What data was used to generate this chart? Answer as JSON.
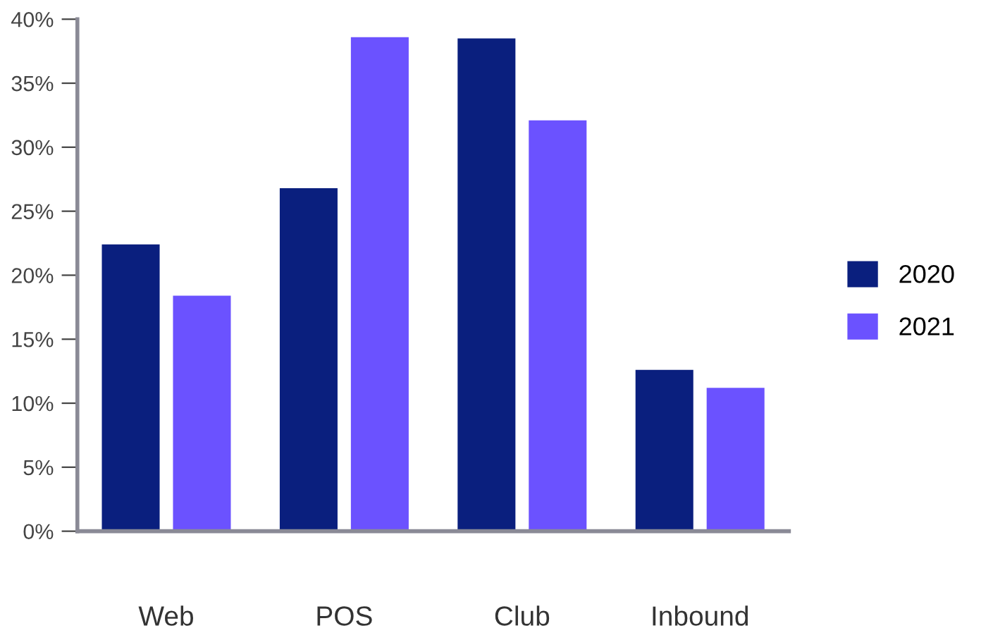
{
  "chart_data": {
    "type": "bar",
    "categories": [
      "Web",
      "POS",
      "Club",
      "Inbound"
    ],
    "series": [
      {
        "name": "2020",
        "color": "#0a1f7e",
        "values": [
          22.4,
          26.8,
          38.5,
          12.6
        ]
      },
      {
        "name": "2021",
        "color": "#6b52ff",
        "values": [
          18.4,
          38.6,
          32.1,
          11.2
        ]
      }
    ],
    "ylim": [
      0,
      40
    ],
    "yticks": [
      {
        "value": 0,
        "label": "0%"
      },
      {
        "value": 5,
        "label": "5%"
      },
      {
        "value": 10,
        "label": "10%"
      },
      {
        "value": 15,
        "label": "15%"
      },
      {
        "value": 20,
        "label": "20%"
      },
      {
        "value": 25,
        "label": "25%"
      },
      {
        "value": 30,
        "label": "30%"
      },
      {
        "value": 35,
        "label": "35%"
      },
      {
        "value": 40,
        "label": "40%"
      }
    ],
    "grid": false,
    "legend": "right"
  }
}
